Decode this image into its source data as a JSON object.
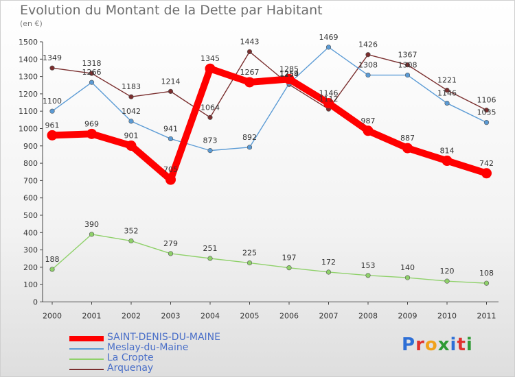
{
  "title": "Evolution du Montant de la Dette par Habitant",
  "unit_label": "(en €)",
  "logo": {
    "text": "Proxiti",
    "letters": [
      "P",
      "r",
      "o",
      "x",
      "i",
      "t",
      "i"
    ],
    "colors": [
      "#2e6fd6",
      "#e0312e",
      "#f0a21a",
      "#2f9a35",
      "#2e6fd6",
      "#e0312e",
      "#2f9a35"
    ]
  },
  "chart_data": {
    "type": "line",
    "categories": [
      "2000",
      "2001",
      "2002",
      "2003",
      "2004",
      "2005",
      "2006",
      "2007",
      "2008",
      "2009",
      "2010",
      "2011"
    ],
    "ylim": [
      0,
      1500
    ],
    "yticks": [
      0,
      100,
      200,
      300,
      400,
      500,
      600,
      700,
      800,
      900,
      1000,
      1100,
      1200,
      1300,
      1400,
      1500
    ],
    "grid": false,
    "legend_position": "bottom-left",
    "series": [
      {
        "name": "SAINT-DENIS-DU-MAINE",
        "color": "#ff0000",
        "values": [
          961,
          969,
          901,
          705,
          1345,
          1267,
          1285,
          1146,
          987,
          887,
          814,
          742
        ]
      },
      {
        "name": "Meslay-du-Maine",
        "color": "#5b9bd5",
        "values": [
          1100,
          1266,
          1042,
          941,
          873,
          892,
          1259,
          1469,
          1308,
          1308,
          1146,
          1035
        ]
      },
      {
        "name": "La Cropte",
        "color": "#8fd16a",
        "values": [
          188,
          390,
          352,
          279,
          251,
          225,
          197,
          172,
          153,
          140,
          120,
          108
        ]
      },
      {
        "name": "Arquenay",
        "color": "#7a2e2e",
        "values": [
          1349,
          1318,
          1183,
          1214,
          1064,
          1443,
          1254,
          1112,
          1426,
          1367,
          1221,
          1106
        ]
      }
    ]
  }
}
